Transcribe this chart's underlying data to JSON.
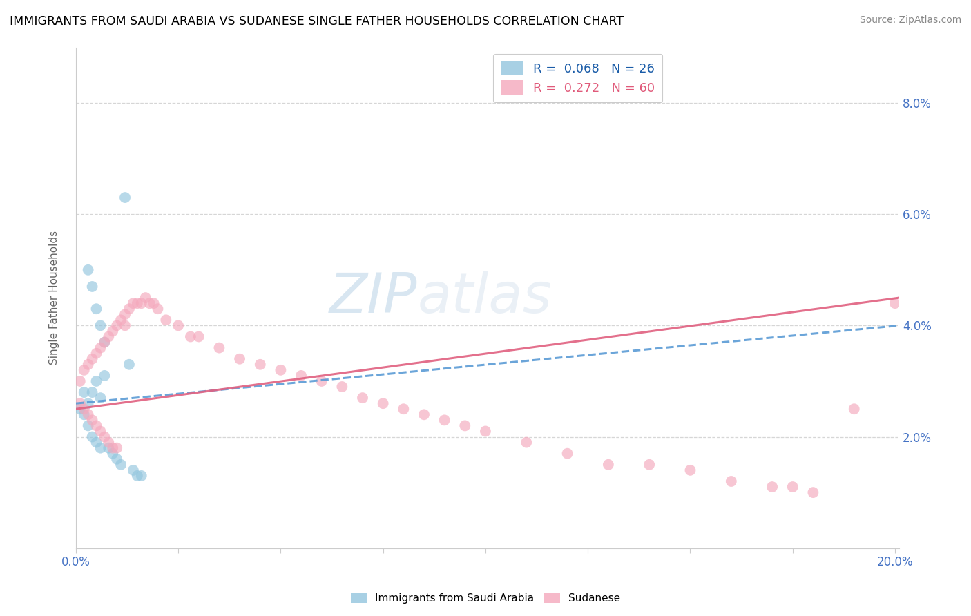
{
  "title": "IMMIGRANTS FROM SAUDI ARABIA VS SUDANESE SINGLE FATHER HOUSEHOLDS CORRELATION CHART",
  "source": "Source: ZipAtlas.com",
  "ylabel": "Single Father Households",
  "xlim": [
    0.0,
    0.201
  ],
  "ylim": [
    0.0,
    0.09
  ],
  "xtick_positions": [
    0.0,
    0.025,
    0.05,
    0.075,
    0.1,
    0.125,
    0.15,
    0.175,
    0.2
  ],
  "xtick_labels": [
    "0.0%",
    "",
    "",
    "",
    "",
    "",
    "",
    "",
    "20.0%"
  ],
  "ytick_positions": [
    0.0,
    0.02,
    0.04,
    0.06,
    0.08
  ],
  "ytick_labels": [
    "",
    "2.0%",
    "4.0%",
    "6.0%",
    "8.0%"
  ],
  "color_blue": "#92c5de",
  "color_pink": "#f4a8bc",
  "color_blue_line": "#5b9bd5",
  "color_pink_line": "#e06080",
  "watermark_text": "ZIPatlas",
  "blue_x": [
    0.001,
    0.002,
    0.002,
    0.003,
    0.003,
    0.004,
    0.004,
    0.005,
    0.005,
    0.006,
    0.006,
    0.007,
    0.008,
    0.009,
    0.01,
    0.011,
    0.012,
    0.013,
    0.014,
    0.015,
    0.016,
    0.003,
    0.004,
    0.005,
    0.006,
    0.007
  ],
  "blue_y": [
    0.025,
    0.028,
    0.024,
    0.026,
    0.022,
    0.028,
    0.02,
    0.03,
    0.019,
    0.027,
    0.018,
    0.031,
    0.018,
    0.017,
    0.016,
    0.015,
    0.063,
    0.033,
    0.014,
    0.013,
    0.013,
    0.05,
    0.047,
    0.043,
    0.04,
    0.037
  ],
  "pink_x": [
    0.001,
    0.001,
    0.002,
    0.002,
    0.003,
    0.003,
    0.004,
    0.004,
    0.005,
    0.005,
    0.006,
    0.006,
    0.007,
    0.007,
    0.008,
    0.008,
    0.009,
    0.009,
    0.01,
    0.01,
    0.011,
    0.012,
    0.012,
    0.013,
    0.014,
    0.015,
    0.016,
    0.017,
    0.018,
    0.019,
    0.02,
    0.022,
    0.025,
    0.028,
    0.03,
    0.035,
    0.04,
    0.045,
    0.05,
    0.055,
    0.06,
    0.065,
    0.07,
    0.075,
    0.08,
    0.085,
    0.09,
    0.095,
    0.1,
    0.11,
    0.12,
    0.13,
    0.14,
    0.15,
    0.16,
    0.17,
    0.175,
    0.18,
    0.19,
    0.2
  ],
  "pink_y": [
    0.03,
    0.026,
    0.032,
    0.025,
    0.033,
    0.024,
    0.034,
    0.023,
    0.035,
    0.022,
    0.036,
    0.021,
    0.037,
    0.02,
    0.038,
    0.019,
    0.039,
    0.018,
    0.04,
    0.018,
    0.041,
    0.042,
    0.04,
    0.043,
    0.044,
    0.044,
    0.044,
    0.045,
    0.044,
    0.044,
    0.043,
    0.041,
    0.04,
    0.038,
    0.038,
    0.036,
    0.034,
    0.033,
    0.032,
    0.031,
    0.03,
    0.029,
    0.027,
    0.026,
    0.025,
    0.024,
    0.023,
    0.022,
    0.021,
    0.019,
    0.017,
    0.015,
    0.015,
    0.014,
    0.012,
    0.011,
    0.011,
    0.01,
    0.025,
    0.044
  ],
  "blue_line_x0": 0.0,
  "blue_line_x1": 0.201,
  "blue_line_y0": 0.026,
  "blue_line_y1": 0.04,
  "pink_line_x0": 0.0,
  "pink_line_x1": 0.201,
  "pink_line_y0": 0.025,
  "pink_line_y1": 0.045
}
